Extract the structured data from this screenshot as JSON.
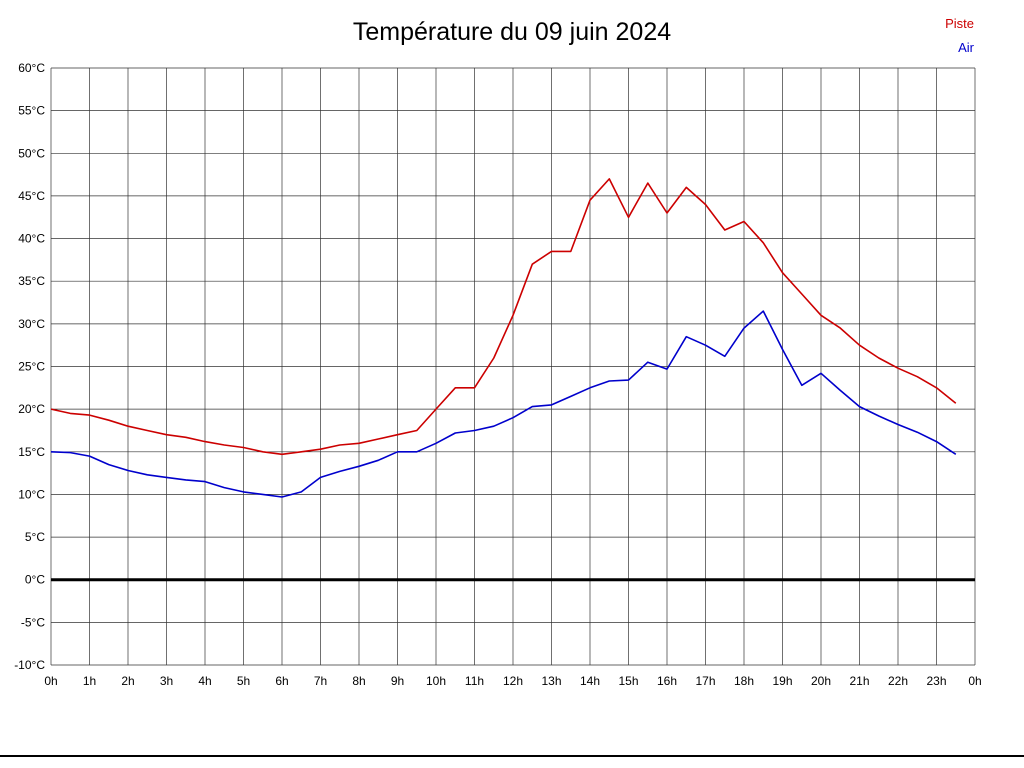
{
  "title": "Température du 09 juin 2024",
  "legend": {
    "items": [
      {
        "label": "Piste",
        "color": "#cc0000"
      },
      {
        "label": "Air",
        "color": "#0000cc"
      }
    ]
  },
  "chart_data": {
    "type": "line",
    "title": "Température du 09 juin 2024",
    "xlabel": "",
    "ylabel": "",
    "xlim": [
      0,
      24
    ],
    "ylim": [
      -10,
      60
    ],
    "ytick_step": 5,
    "grid": true,
    "legend_position": "top-right",
    "zero_line": true,
    "yticks": [
      "60°C",
      "55°C",
      "50°C",
      "45°C",
      "40°C",
      "35°C",
      "30°C",
      "25°C",
      "20°C",
      "15°C",
      "10°C",
      "5°C",
      "0°C",
      "-5°C",
      "-10°C"
    ],
    "xticks": [
      "0h",
      "1h",
      "2h",
      "3h",
      "4h",
      "5h",
      "6h",
      "7h",
      "8h",
      "9h",
      "10h",
      "11h",
      "12h",
      "13h",
      "14h",
      "15h",
      "16h",
      "17h",
      "18h",
      "19h",
      "20h",
      "21h",
      "22h",
      "23h",
      "0h"
    ],
    "x_hours": [
      0,
      0.5,
      1,
      1.5,
      2,
      2.5,
      3,
      3.5,
      4,
      4.5,
      5,
      5.5,
      6,
      6.5,
      7,
      7.5,
      8,
      8.5,
      9,
      9.5,
      10,
      10.5,
      11,
      11.5,
      12,
      12.5,
      13,
      13.5,
      14,
      14.5,
      15,
      15.5,
      16,
      16.5,
      17,
      17.5,
      18,
      18.5,
      19,
      19.5,
      20,
      20.5,
      21,
      21.5,
      22,
      22.5,
      23,
      23.5
    ],
    "series": [
      {
        "name": "Piste",
        "color": "#cc0000",
        "values": [
          20,
          19.5,
          19.3,
          18.7,
          18,
          17.5,
          17,
          16.7,
          16.2,
          15.8,
          15.5,
          15,
          14.7,
          15,
          15.3,
          15.8,
          16,
          16.5,
          17,
          17.5,
          20,
          22.5,
          22.5,
          26,
          31,
          37,
          38.5,
          38.5,
          44.5,
          47,
          42.5,
          46.5,
          43,
          46,
          44,
          41,
          42,
          39.5,
          36,
          33.5,
          31,
          29.5,
          27.5,
          26,
          24.8,
          23.8,
          22.5,
          20.7
        ]
      },
      {
        "name": "Air",
        "color": "#0000cc",
        "values": [
          15,
          14.9,
          14.5,
          13.5,
          12.8,
          12.3,
          12,
          11.7,
          11.5,
          10.8,
          10.3,
          10,
          9.7,
          10.3,
          12,
          12.7,
          13.3,
          14,
          15,
          15,
          16,
          17.2,
          17.5,
          18,
          19,
          20.3,
          20.5,
          21.5,
          22.5,
          23.3,
          23.4,
          25.5,
          24.7,
          28.5,
          27.5,
          26.2,
          29.5,
          31.5,
          27,
          22.8,
          24.2,
          22.2,
          20.3,
          19.2,
          18.2,
          17.3,
          16.2,
          14.7
        ]
      }
    ]
  }
}
